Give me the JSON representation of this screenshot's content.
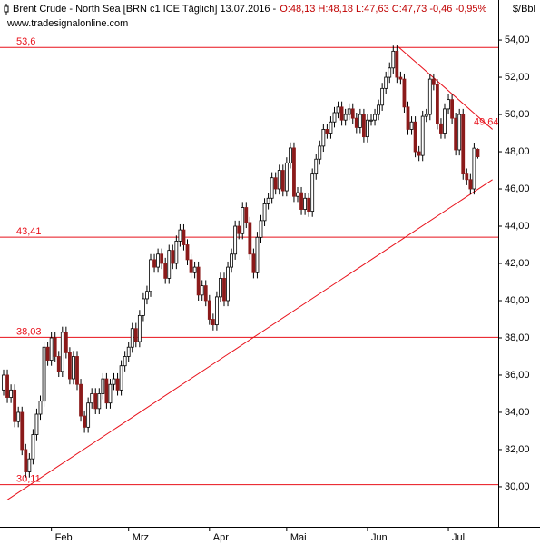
{
  "chart_data": {
    "type": "candlestick",
    "title": "Brent Crude - North Sea [BRN c1 ICE  Täglich] 13.07.2016 -",
    "quote": "O:48,13 H:48,18 L:47,63 C:47,73 -0,46 -0,95%",
    "watermark": "www.tradesignalonline.com",
    "y_axis_label": "$/Bbl",
    "up_color": "#ffffff",
    "down_color": "#8b1a1a",
    "line_color": "#e8101a",
    "categories": [
      null,
      null,
      null,
      null,
      null,
      null,
      null,
      null,
      null,
      null,
      null,
      null,
      null,
      "Feb",
      null,
      null,
      null,
      null,
      null,
      null,
      null,
      null,
      null,
      null,
      null,
      null,
      null,
      null,
      null,
      null,
      null,
      null,
      null,
      null,
      "Mrz",
      null,
      null,
      null,
      null,
      null,
      null,
      null,
      null,
      null,
      null,
      null,
      null,
      null,
      null,
      null,
      null,
      null,
      null,
      null,
      null,
      null,
      "Apr",
      null,
      null,
      null,
      null,
      null,
      null,
      null,
      null,
      null,
      null,
      null,
      null,
      null,
      null,
      null,
      null,
      null,
      null,
      null,
      null,
      "Mai",
      null,
      null,
      null,
      null,
      null,
      null,
      null,
      null,
      null,
      null,
      null,
      null,
      null,
      null,
      null,
      null,
      null,
      null,
      null,
      null,
      null,
      "Jun",
      null,
      null,
      null,
      null,
      null,
      null,
      null,
      null,
      null,
      null,
      null,
      null,
      null,
      null,
      null,
      null,
      null,
      null,
      null,
      null,
      null,
      "Jul",
      null,
      null,
      null,
      null,
      null,
      null,
      null,
      null
    ],
    "open": [
      35.2,
      36.0,
      34.8,
      35.2,
      33.5,
      34.0,
      32.0,
      30.8,
      31.5,
      32.8,
      33.9,
      34.6,
      37.5,
      36.8,
      38.0,
      37.0,
      36.2,
      38.3,
      37.2,
      35.8,
      37.0,
      35.5,
      33.8,
      33.2,
      34.5,
      35.0,
      34.2,
      35.0,
      35.8,
      34.5,
      35.5,
      35.8,
      35.2,
      36.5,
      37.0,
      37.5,
      38.5,
      37.8,
      39.2,
      40.1,
      40.5,
      42.2,
      41.8,
      42.5,
      42.0,
      41.2,
      42.7,
      42.0,
      43.2,
      43.8,
      43.0,
      42.2,
      41.5,
      41.8,
      40.3,
      40.8,
      40.0,
      39.0,
      38.7,
      40.2,
      41.2,
      40.0,
      41.8,
      42.5,
      44.0,
      43.6,
      45.0,
      44.2,
      42.5,
      41.5,
      43.4,
      44.3,
      45.2,
      45.5,
      46.6,
      46.0,
      47.0,
      45.9,
      47.4,
      48.2,
      45.6,
      45.8,
      44.9,
      45.5,
      44.8,
      46.8,
      47.6,
      48.3,
      49.2,
      49.0,
      49.6,
      50.1,
      50.4,
      49.7,
      50.0,
      50.3,
      49.8,
      49.3,
      50.0,
      48.8,
      49.7,
      49.7,
      50.0,
      50.5,
      51.4,
      52.0,
      52.5,
      53.4,
      52.0,
      51.9,
      50.4,
      49.2,
      49.6,
      48.0,
      47.8,
      49.9,
      50.0,
      51.9,
      51.6,
      49.5,
      49.0,
      50.3,
      50.8,
      49.8,
      48.1,
      50.0,
      46.8,
      46.5,
      46.0,
      48.13
    ],
    "high": [
      36.3,
      36.3,
      35.5,
      35.5,
      34.3,
      34.3,
      32.3,
      31.8,
      33.1,
      34.2,
      34.9,
      37.8,
      37.8,
      38.3,
      38.3,
      37.3,
      38.6,
      38.6,
      37.5,
      37.3,
      37.3,
      35.8,
      34.1,
      34.8,
      35.3,
      35.3,
      35.3,
      36.1,
      36.1,
      35.8,
      36.1,
      36.1,
      36.8,
      37.3,
      37.8,
      38.8,
      38.8,
      39.5,
      40.4,
      40.8,
      42.5,
      42.5,
      42.8,
      42.8,
      42.3,
      43.0,
      43.0,
      43.5,
      44.1,
      44.1,
      43.3,
      42.5,
      42.1,
      42.1,
      41.1,
      41.1,
      40.3,
      39.3,
      40.5,
      41.5,
      41.5,
      42.1,
      42.8,
      44.3,
      44.3,
      45.3,
      45.3,
      44.5,
      42.8,
      43.7,
      44.6,
      45.5,
      45.8,
      46.9,
      46.9,
      47.3,
      47.3,
      47.7,
      48.5,
      48.5,
      46.1,
      46.1,
      45.8,
      45.8,
      47.1,
      47.9,
      48.6,
      49.5,
      49.5,
      49.9,
      50.4,
      50.7,
      50.7,
      50.3,
      50.6,
      50.6,
      50.1,
      50.3,
      50.3,
      50.0,
      50.0,
      50.3,
      50.8,
      51.7,
      52.3,
      52.8,
      53.7,
      53.7,
      52.3,
      52.2,
      50.7,
      49.9,
      49.9,
      48.3,
      50.2,
      50.3,
      52.2,
      52.2,
      51.9,
      49.8,
      50.6,
      51.1,
      51.1,
      50.1,
      50.3,
      50.3,
      47.1,
      46.8,
      48.49,
      48.18
    ],
    "low": [
      34.9,
      34.5,
      34.5,
      33.2,
      33.2,
      31.7,
      30.5,
      30.5,
      31.2,
      32.5,
      33.6,
      34.3,
      36.5,
      36.5,
      36.7,
      35.9,
      35.9,
      36.9,
      35.5,
      35.5,
      35.2,
      33.5,
      32.9,
      32.9,
      34.2,
      33.9,
      33.9,
      34.7,
      34.2,
      34.2,
      35.2,
      34.9,
      34.9,
      36.2,
      36.7,
      37.2,
      37.5,
      37.5,
      38.9,
      39.8,
      40.2,
      41.5,
      41.5,
      41.7,
      40.9,
      40.9,
      41.7,
      41.7,
      42.9,
      42.7,
      41.9,
      41.2,
      41.2,
      40.0,
      40.0,
      39.7,
      38.7,
      38.4,
      38.4,
      39.9,
      39.7,
      39.7,
      41.5,
      42.2,
      43.3,
      43.3,
      43.9,
      42.2,
      41.2,
      41.2,
      43.1,
      44.0,
      44.9,
      45.2,
      45.7,
      45.7,
      45.6,
      45.6,
      47.1,
      45.3,
      45.3,
      44.6,
      44.6,
      44.5,
      44.5,
      46.5,
      47.3,
      48.0,
      48.7,
      48.7,
      49.3,
      49.8,
      49.4,
      49.4,
      49.7,
      49.5,
      49.0,
      49.0,
      48.5,
      48.5,
      49.4,
      49.4,
      49.7,
      50.2,
      51.1,
      51.7,
      52.2,
      51.7,
      51.6,
      50.1,
      48.9,
      48.9,
      47.7,
      47.5,
      47.5,
      49.6,
      49.7,
      51.3,
      49.2,
      48.7,
      48.7,
      50.0,
      49.5,
      47.8,
      47.8,
      46.5,
      46.2,
      45.7,
      45.7,
      47.63
    ],
    "close": [
      36.0,
      34.8,
      35.2,
      33.5,
      34.0,
      32.0,
      30.8,
      31.5,
      32.8,
      33.9,
      34.6,
      37.5,
      36.8,
      38.0,
      37.0,
      36.2,
      38.3,
      37.2,
      35.8,
      37.0,
      35.5,
      33.8,
      33.2,
      34.5,
      35.0,
      34.2,
      35.0,
      35.8,
      34.5,
      35.5,
      35.8,
      35.2,
      36.5,
      37.0,
      37.5,
      38.5,
      37.8,
      39.2,
      40.1,
      40.5,
      42.2,
      41.8,
      42.5,
      42.0,
      41.2,
      42.7,
      42.0,
      43.2,
      43.8,
      43.0,
      42.2,
      41.5,
      41.8,
      40.3,
      40.8,
      40.0,
      39.0,
      38.7,
      40.2,
      41.2,
      40.0,
      41.8,
      42.5,
      44.0,
      43.6,
      45.0,
      44.2,
      42.5,
      41.5,
      43.4,
      44.3,
      45.2,
      45.5,
      46.6,
      46.0,
      47.0,
      45.9,
      47.4,
      48.2,
      45.6,
      45.8,
      44.9,
      45.5,
      44.8,
      46.8,
      47.6,
      48.3,
      49.2,
      49.0,
      49.6,
      50.1,
      50.4,
      49.7,
      50.0,
      50.3,
      49.8,
      49.3,
      50.0,
      48.8,
      49.7,
      49.7,
      50.0,
      50.5,
      51.4,
      52.0,
      52.5,
      53.4,
      52.0,
      51.9,
      50.4,
      49.2,
      49.6,
      48.0,
      47.8,
      49.9,
      50.0,
      51.9,
      51.6,
      49.5,
      49.0,
      50.3,
      50.8,
      49.8,
      48.1,
      50.0,
      46.8,
      46.5,
      46.0,
      48.19,
      47.73
    ],
    "ylim": [
      27.85,
      56.15
    ],
    "yticks": [
      {
        "value": 30,
        "label": "30,00"
      },
      {
        "value": 32,
        "label": "32,00"
      },
      {
        "value": 34,
        "label": "34,00"
      },
      {
        "value": 36,
        "label": "36,00"
      },
      {
        "value": 38,
        "label": "38,00"
      },
      {
        "value": 40,
        "label": "40,00"
      },
      {
        "value": 42,
        "label": "42,00"
      },
      {
        "value": 44,
        "label": "44,00"
      },
      {
        "value": 46,
        "label": "46,00"
      },
      {
        "value": 48,
        "label": "48,00"
      },
      {
        "value": 50,
        "label": "50,00"
      },
      {
        "value": 52,
        "label": "52,00"
      },
      {
        "value": 54,
        "label": "54,00"
      }
    ],
    "levels": [
      {
        "value": 53.6,
        "label": "53,6"
      },
      {
        "value": 43.41,
        "label": "43,41"
      },
      {
        "value": 38.03,
        "label": "38,03"
      },
      {
        "value": 30.11,
        "label": "30,11"
      }
    ],
    "marker_label": {
      "value": 49.64,
      "label": "49,64"
    },
    "trendlines": [
      {
        "x": [
          1,
          133
        ],
        "y": [
          29.3,
          46.5
        ]
      },
      {
        "x": [
          107,
          133
        ],
        "y": [
          53.7,
          49.2
        ]
      }
    ]
  }
}
